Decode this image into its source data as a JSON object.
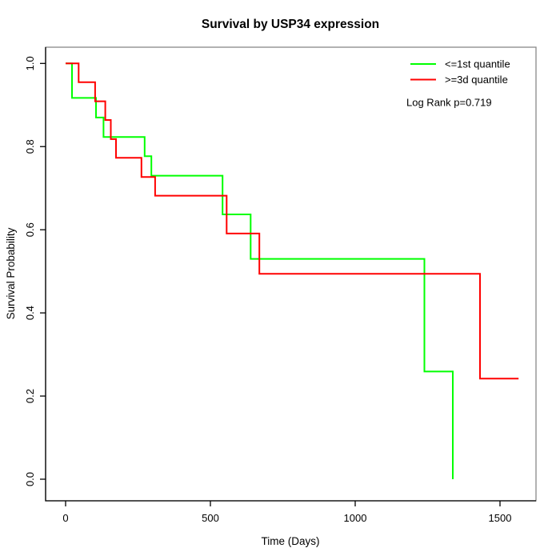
{
  "title": "Survival by USP34 expression",
  "axes": {
    "x": {
      "label": "Time (Days)",
      "tick_labels": [
        "0",
        "500",
        "1000",
        "1500"
      ],
      "tick_values": [
        0,
        500,
        1000,
        1500
      ]
    },
    "y": {
      "label": "Survival Probability",
      "tick_labels": [
        "0.0",
        "0.2",
        "0.4",
        "0.6",
        "0.8",
        "1.0"
      ],
      "tick_values": [
        0.0,
        0.2,
        0.4,
        0.6,
        0.8,
        1.0
      ]
    }
  },
  "legend": {
    "items": [
      {
        "label": "<=1st quantile",
        "color": "#00ff00"
      },
      {
        "label": ">=3d quantile",
        "color": "#ff0000"
      }
    ],
    "annotation": "Log Rank p=0.719"
  },
  "chart_data": {
    "type": "line",
    "variant": "kaplan_meier_step",
    "title": "Survival by USP34 expression",
    "xlabel": "Time (Days)",
    "ylabel": "Survival Probability",
    "xlim": [
      0,
      1620
    ],
    "ylim": [
      0.0,
      1.0
    ],
    "x_ticks": [
      0,
      500,
      1000,
      1500
    ],
    "y_ticks": [
      0.0,
      0.2,
      0.4,
      0.6,
      0.8,
      1.0
    ],
    "grid": false,
    "legend_position": "topright",
    "annotation": "Log Rank p=0.719",
    "series": [
      {
        "name": "<=1st quantile",
        "color": "#00ff00",
        "steps": [
          [
            0,
            1.0
          ],
          [
            22,
            0.917
          ],
          [
            105,
            0.87
          ],
          [
            131,
            0.823
          ],
          [
            273,
            0.777
          ],
          [
            296,
            0.73
          ],
          [
            542,
            0.637
          ],
          [
            639,
            0.53
          ],
          [
            1239,
            0.259
          ],
          [
            1337,
            0.0
          ]
        ],
        "end_time": 1337
      },
      {
        "name": ">=3d quantile",
        "color": "#ff0000",
        "steps": [
          [
            0,
            1.0
          ],
          [
            45,
            0.955
          ],
          [
            102,
            0.909
          ],
          [
            137,
            0.864
          ],
          [
            156,
            0.818
          ],
          [
            174,
            0.773
          ],
          [
            262,
            0.727
          ],
          [
            309,
            0.682
          ],
          [
            556,
            0.591
          ],
          [
            669,
            0.494
          ],
          [
            1431,
            0.242
          ]
        ],
        "end_time": 1564
      }
    ]
  }
}
